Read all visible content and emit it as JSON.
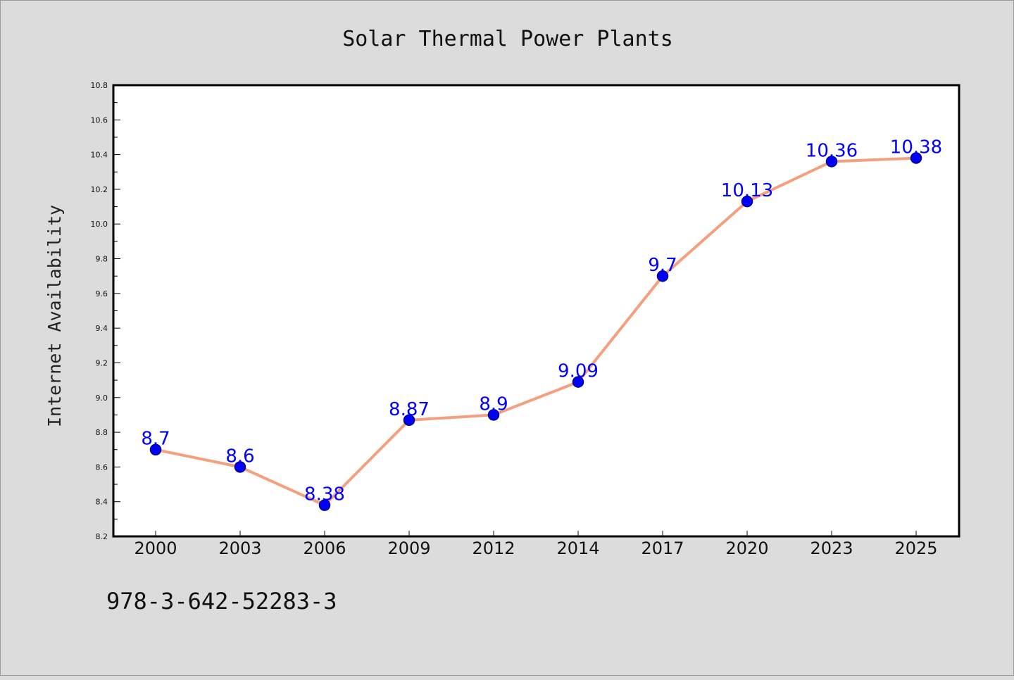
{
  "colors": {
    "line": "#f4a07f",
    "marker": "#0000ff",
    "marker_edge": "#000080",
    "data_label": "#0000ff",
    "plot_bg": "#ffffff",
    "figure_bg": "#dcdcdc"
  },
  "footer_text": "978-3-642-52283-3",
  "chart_data": {
    "type": "line",
    "title": "Solar Thermal Power Plants",
    "xlabel": "",
    "ylabel": "Internet Availability",
    "categories": [
      "2000",
      "2003",
      "2006",
      "2009",
      "2012",
      "2014",
      "2017",
      "2020",
      "2023",
      "2025"
    ],
    "series": [
      {
        "values": [
          8.7,
          8.6,
          8.38,
          8.87,
          8.9,
          9.09,
          9.7,
          10.13,
          10.36,
          10.38
        ],
        "labels": [
          "8.7",
          "8.6",
          "8.38",
          "8.87",
          "8.9",
          "9.09",
          "9.7",
          "10.13",
          "10.36",
          "10.38"
        ]
      }
    ],
    "ylim": [
      8.2,
      10.8
    ],
    "yticks": [
      "8.2",
      "8.4",
      "8.6",
      "8.8",
      "9.0",
      "9.2",
      "9.4",
      "9.6",
      "9.8",
      "10.0",
      "10.2",
      "10.4",
      "10.6",
      "10.8"
    ],
    "grid": false,
    "legend": "none"
  }
}
